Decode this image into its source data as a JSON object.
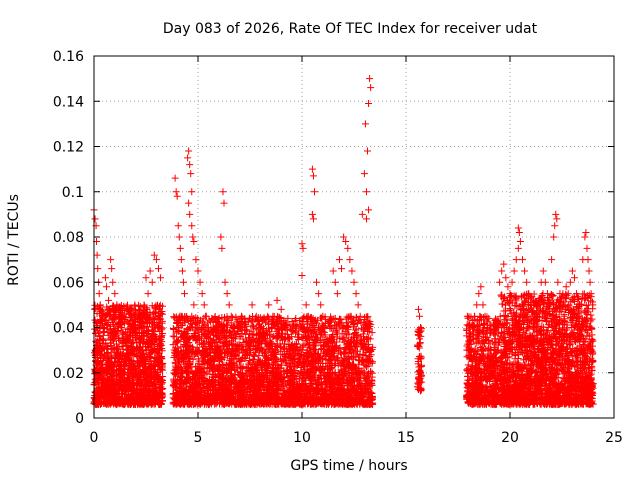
{
  "chart_data": {
    "type": "scatter",
    "title": "Day 083 of 2026, Rate Of TEC Index for receiver udat",
    "xlabel": "GPS time / hours",
    "ylabel": "ROTI / TECUs",
    "xlim": [
      0,
      25
    ],
    "ylim": [
      0,
      0.16
    ],
    "x_ticks": [
      0,
      5,
      10,
      15,
      20,
      25
    ],
    "x_tick_labels": [
      "0",
      "5",
      "10",
      "15",
      "20",
      "25"
    ],
    "y_ticks": [
      0,
      0.02,
      0.04,
      0.06,
      0.08,
      0.1,
      0.12,
      0.14,
      0.16
    ],
    "y_tick_labels": [
      "0",
      "0.02",
      "0.04",
      "0.06",
      "0.08",
      "0.1",
      "0.12",
      "0.14",
      "0.16"
    ],
    "grid": true,
    "legend": "none",
    "marker": "plus",
    "color": "#ff0000",
    "points": [
      [
        0.0,
        0.092
      ],
      [
        0.05,
        0.088
      ],
      [
        0.1,
        0.085
      ],
      [
        0.12,
        0.078
      ],
      [
        0.15,
        0.072
      ],
      [
        0.18,
        0.066
      ],
      [
        0.22,
        0.06
      ],
      [
        0.25,
        0.055
      ],
      [
        0.3,
        0.05
      ],
      [
        0.35,
        0.047
      ],
      [
        0.05,
        0.03
      ],
      [
        0.08,
        0.025
      ],
      [
        0.1,
        0.02
      ],
      [
        0.15,
        0.018
      ],
      [
        0.2,
        0.015
      ],
      [
        0.25,
        0.012
      ],
      [
        0.3,
        0.01
      ],
      [
        0.4,
        0.022
      ],
      [
        0.45,
        0.035
      ],
      [
        0.5,
        0.04
      ],
      [
        0.55,
        0.062
      ],
      [
        0.6,
        0.058
      ],
      [
        0.7,
        0.052
      ],
      [
        0.75,
        0.045
      ],
      [
        0.8,
        0.07
      ],
      [
        0.85,
        0.066
      ],
      [
        0.9,
        0.06
      ],
      [
        1.0,
        0.055
      ],
      [
        1.1,
        0.05
      ],
      [
        1.2,
        0.045
      ],
      [
        1.3,
        0.04
      ],
      [
        1.4,
        0.038
      ],
      [
        1.5,
        0.035
      ],
      [
        1.6,
        0.03
      ],
      [
        1.7,
        0.028
      ],
      [
        1.8,
        0.025
      ],
      [
        1.9,
        0.022
      ],
      [
        2.0,
        0.02
      ],
      [
        2.1,
        0.018
      ],
      [
        2.2,
        0.016
      ],
      [
        0.6,
        0.012
      ],
      [
        0.8,
        0.014
      ],
      [
        1.0,
        0.016
      ],
      [
        1.2,
        0.018
      ],
      [
        1.4,
        0.02
      ],
      [
        1.6,
        0.015
      ],
      [
        1.8,
        0.013
      ],
      [
        2.0,
        0.011
      ],
      [
        2.2,
        0.012
      ],
      [
        2.4,
        0.014
      ],
      [
        2.5,
        0.062
      ],
      [
        2.6,
        0.055
      ],
      [
        2.7,
        0.065
      ],
      [
        2.8,
        0.06
      ],
      [
        2.9,
        0.072
      ],
      [
        3.0,
        0.07
      ],
      [
        3.1,
        0.066
      ],
      [
        3.2,
        0.062
      ],
      [
        2.5,
        0.03
      ],
      [
        2.7,
        0.025
      ],
      [
        2.9,
        0.02
      ],
      [
        3.0,
        0.018
      ],
      [
        3.1,
        0.016
      ],
      [
        3.2,
        0.013
      ],
      [
        2.6,
        0.01
      ],
      [
        2.8,
        0.008
      ],
      [
        3.0,
        0.009
      ],
      [
        3.2,
        0.015
      ],
      [
        2.4,
        0.025
      ],
      [
        2.3,
        0.03
      ],
      [
        3.9,
        0.106
      ],
      [
        3.95,
        0.1
      ],
      [
        4.0,
        0.098
      ],
      [
        4.05,
        0.085
      ],
      [
        4.1,
        0.08
      ],
      [
        4.15,
        0.075
      ],
      [
        4.2,
        0.07
      ],
      [
        4.25,
        0.065
      ],
      [
        4.3,
        0.06
      ],
      [
        4.35,
        0.055
      ],
      [
        3.9,
        0.02
      ],
      [
        4.0,
        0.015
      ],
      [
        4.1,
        0.012
      ],
      [
        4.2,
        0.018
      ],
      [
        4.3,
        0.025
      ],
      [
        4.4,
        0.03
      ],
      [
        4.5,
        0.035
      ],
      [
        4.6,
        0.04
      ],
      [
        4.7,
        0.045
      ],
      [
        4.8,
        0.05
      ],
      [
        4.5,
        0.115
      ],
      [
        4.55,
        0.118
      ],
      [
        4.6,
        0.112
      ],
      [
        4.65,
        0.108
      ],
      [
        4.7,
        0.1
      ],
      [
        4.55,
        0.095
      ],
      [
        4.6,
        0.09
      ],
      [
        4.7,
        0.085
      ],
      [
        4.75,
        0.08
      ],
      [
        4.8,
        0.078
      ],
      [
        4.9,
        0.07
      ],
      [
        5.0,
        0.065
      ],
      [
        5.1,
        0.06
      ],
      [
        5.2,
        0.055
      ],
      [
        5.3,
        0.05
      ],
      [
        5.4,
        0.045
      ],
      [
        5.5,
        0.04
      ],
      [
        5.6,
        0.035
      ],
      [
        5.7,
        0.03
      ],
      [
        5.8,
        0.025
      ],
      [
        5.0,
        0.02
      ],
      [
        5.2,
        0.018
      ],
      [
        5.4,
        0.015
      ],
      [
        5.6,
        0.012
      ],
      [
        5.8,
        0.01
      ],
      [
        6.0,
        0.015
      ],
      [
        6.2,
        0.1
      ],
      [
        6.25,
        0.095
      ],
      [
        6.1,
        0.08
      ],
      [
        6.15,
        0.075
      ],
      [
        6.3,
        0.06
      ],
      [
        6.4,
        0.055
      ],
      [
        6.5,
        0.05
      ],
      [
        6.6,
        0.045
      ],
      [
        6.7,
        0.04
      ],
      [
        6.8,
        0.035
      ],
      [
        6.9,
        0.03
      ],
      [
        7.0,
        0.025
      ],
      [
        6.4,
        0.02
      ],
      [
        6.6,
        0.015
      ],
      [
        6.8,
        0.012
      ],
      [
        7.0,
        0.01
      ],
      [
        7.2,
        0.018
      ],
      [
        7.4,
        0.022
      ],
      [
        7.6,
        0.05
      ],
      [
        7.8,
        0.045
      ],
      [
        8.0,
        0.04
      ],
      [
        8.2,
        0.035
      ],
      [
        8.4,
        0.05
      ],
      [
        8.6,
        0.045
      ],
      [
        8.8,
        0.052
      ],
      [
        9.0,
        0.048
      ],
      [
        9.2,
        0.04
      ],
      [
        9.4,
        0.035
      ],
      [
        9.6,
        0.03
      ],
      [
        9.8,
        0.025
      ],
      [
        7.5,
        0.015
      ],
      [
        7.8,
        0.012
      ],
      [
        8.1,
        0.01
      ],
      [
        8.4,
        0.014
      ],
      [
        8.7,
        0.016
      ],
      [
        9.0,
        0.018
      ],
      [
        9.3,
        0.02
      ],
      [
        9.6,
        0.015
      ],
      [
        9.9,
        0.013
      ],
      [
        10.0,
        0.077
      ],
      [
        10.05,
        0.075
      ],
      [
        10.0,
        0.063
      ],
      [
        10.2,
        0.05
      ],
      [
        10.3,
        0.045
      ],
      [
        10.5,
        0.11
      ],
      [
        10.55,
        0.107
      ],
      [
        10.6,
        0.1
      ],
      [
        10.5,
        0.09
      ],
      [
        10.55,
        0.088
      ],
      [
        10.7,
        0.06
      ],
      [
        10.8,
        0.055
      ],
      [
        10.9,
        0.05
      ],
      [
        11.0,
        0.045
      ],
      [
        11.1,
        0.04
      ],
      [
        10.4,
        0.02
      ],
      [
        10.6,
        0.018
      ],
      [
        10.8,
        0.015
      ],
      [
        11.0,
        0.012
      ],
      [
        11.2,
        0.01
      ],
      [
        11.4,
        0.015
      ],
      [
        11.5,
        0.065
      ],
      [
        11.6,
        0.06
      ],
      [
        11.7,
        0.055
      ],
      [
        11.8,
        0.07
      ],
      [
        11.9,
        0.066
      ],
      [
        12.0,
        0.08
      ],
      [
        12.1,
        0.078
      ],
      [
        12.2,
        0.075
      ],
      [
        12.3,
        0.07
      ],
      [
        12.4,
        0.065
      ],
      [
        12.5,
        0.06
      ],
      [
        12.6,
        0.055
      ],
      [
        12.7,
        0.05
      ],
      [
        12.8,
        0.045
      ],
      [
        12.9,
        0.09
      ],
      [
        13.0,
        0.108
      ],
      [
        13.05,
        0.13
      ],
      [
        13.1,
        0.1
      ],
      [
        13.15,
        0.118
      ],
      [
        13.2,
        0.092
      ],
      [
        13.25,
        0.15
      ],
      [
        13.3,
        0.146
      ],
      [
        13.2,
        0.139
      ],
      [
        13.1,
        0.088
      ],
      [
        11.8,
        0.02
      ],
      [
        12.0,
        0.018
      ],
      [
        12.2,
        0.015
      ],
      [
        12.4,
        0.012
      ],
      [
        12.6,
        0.01
      ],
      [
        12.8,
        0.015
      ],
      [
        13.0,
        0.02
      ],
      [
        13.2,
        0.025
      ],
      [
        13.3,
        0.03
      ],
      [
        13.1,
        0.035
      ],
      [
        15.6,
        0.048
      ],
      [
        15.65,
        0.045
      ],
      [
        15.7,
        0.04
      ],
      [
        15.6,
        0.038
      ],
      [
        15.65,
        0.035
      ],
      [
        15.7,
        0.02
      ],
      [
        15.6,
        0.018
      ],
      [
        15.65,
        0.016
      ],
      [
        15.7,
        0.012
      ],
      [
        15.6,
        0.025
      ],
      [
        18.0,
        0.03
      ],
      [
        18.1,
        0.035
      ],
      [
        18.2,
        0.04
      ],
      [
        18.3,
        0.045
      ],
      [
        18.4,
        0.05
      ],
      [
        18.5,
        0.055
      ],
      [
        18.6,
        0.058
      ],
      [
        18.7,
        0.05
      ],
      [
        18.8,
        0.045
      ],
      [
        18.9,
        0.04
      ],
      [
        18.0,
        0.015
      ],
      [
        18.2,
        0.012
      ],
      [
        18.4,
        0.01
      ],
      [
        18.6,
        0.014
      ],
      [
        18.8,
        0.018
      ],
      [
        19.0,
        0.022
      ],
      [
        19.2,
        0.025
      ],
      [
        19.4,
        0.03
      ],
      [
        19.5,
        0.02
      ],
      [
        19.3,
        0.015
      ],
      [
        19.5,
        0.06
      ],
      [
        19.6,
        0.065
      ],
      [
        19.7,
        0.068
      ],
      [
        19.8,
        0.062
      ],
      [
        19.9,
        0.058
      ],
      [
        20.0,
        0.055
      ],
      [
        20.1,
        0.06
      ],
      [
        20.2,
        0.065
      ],
      [
        20.3,
        0.07
      ],
      [
        20.4,
        0.075
      ],
      [
        20.4,
        0.084
      ],
      [
        20.45,
        0.082
      ],
      [
        20.5,
        0.078
      ],
      [
        20.6,
        0.07
      ],
      [
        20.7,
        0.065
      ],
      [
        20.8,
        0.06
      ],
      [
        20.9,
        0.055
      ],
      [
        21.0,
        0.05
      ],
      [
        21.1,
        0.045
      ],
      [
        21.2,
        0.04
      ],
      [
        19.8,
        0.02
      ],
      [
        20.0,
        0.018
      ],
      [
        20.2,
        0.015
      ],
      [
        20.4,
        0.012
      ],
      [
        20.6,
        0.01
      ],
      [
        20.8,
        0.013
      ],
      [
        21.0,
        0.016
      ],
      [
        21.2,
        0.02
      ],
      [
        21.4,
        0.025
      ],
      [
        21.6,
        0.03
      ],
      [
        21.5,
        0.06
      ],
      [
        21.6,
        0.065
      ],
      [
        21.7,
        0.06
      ],
      [
        21.8,
        0.055
      ],
      [
        21.9,
        0.05
      ],
      [
        22.0,
        0.07
      ],
      [
        22.1,
        0.08
      ],
      [
        22.15,
        0.085
      ],
      [
        22.2,
        0.09
      ],
      [
        22.25,
        0.088
      ],
      [
        22.3,
        0.06
      ],
      [
        22.4,
        0.055
      ],
      [
        22.5,
        0.05
      ],
      [
        22.6,
        0.045
      ],
      [
        22.7,
        0.058
      ],
      [
        22.8,
        0.055
      ],
      [
        22.9,
        0.06
      ],
      [
        23.0,
        0.065
      ],
      [
        23.1,
        0.062
      ],
      [
        23.2,
        0.055
      ],
      [
        22.0,
        0.02
      ],
      [
        22.2,
        0.018
      ],
      [
        22.4,
        0.015
      ],
      [
        22.6,
        0.012
      ],
      [
        22.8,
        0.01
      ],
      [
        23.0,
        0.015
      ],
      [
        23.2,
        0.02
      ],
      [
        23.4,
        0.025
      ],
      [
        23.5,
        0.07
      ],
      [
        23.6,
        0.08
      ],
      [
        23.65,
        0.082
      ],
      [
        23.7,
        0.075
      ],
      [
        23.75,
        0.07
      ],
      [
        23.8,
        0.065
      ],
      [
        23.85,
        0.06
      ],
      [
        23.9,
        0.055
      ],
      [
        23.6,
        0.03
      ],
      [
        23.7,
        0.025
      ],
      [
        23.8,
        0.02
      ],
      [
        23.9,
        0.015
      ]
    ],
    "dense_regions": [
      {
        "x_range": [
          0.0,
          3.3
        ],
        "y_range": [
          0.006,
          0.05
        ],
        "count": 1600,
        "seed": 11
      },
      {
        "x_range": [
          3.8,
          13.4
        ],
        "y_range": [
          0.006,
          0.045
        ],
        "count": 3600,
        "seed": 23
      },
      {
        "x_range": [
          15.55,
          15.75
        ],
        "y_range": [
          0.012,
          0.04
        ],
        "count": 60,
        "seed": 31
      },
      {
        "x_range": [
          17.9,
          19.45
        ],
        "y_range": [
          0.006,
          0.045
        ],
        "count": 600,
        "seed": 41
      },
      {
        "x_range": [
          19.5,
          24.0
        ],
        "y_range": [
          0.006,
          0.055
        ],
        "count": 2200,
        "seed": 53
      }
    ]
  }
}
